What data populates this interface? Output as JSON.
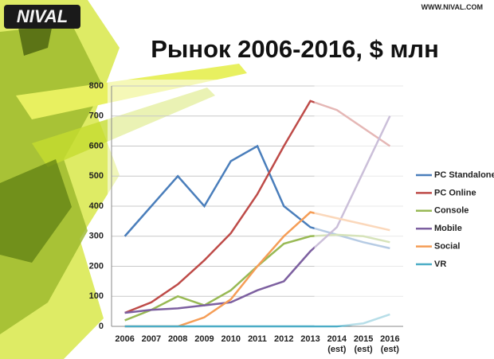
{
  "header": {
    "logo": "NIVAL",
    "site": "WWW.NIVAL.COM"
  },
  "chart_data": {
    "type": "line",
    "title": "Рынок 2006-2016, $ млн",
    "categories": [
      "2006",
      "2007",
      "2008",
      "2009",
      "2010",
      "2011",
      "2012",
      "2013",
      "2014\n(est)",
      "2015\n(est)",
      "2016\n(est)"
    ],
    "ylim": [
      0,
      800
    ],
    "yticks": [
      0,
      100,
      200,
      300,
      400,
      500,
      600,
      700,
      800
    ],
    "grid": true,
    "legend": "right",
    "series": [
      {
        "name": "PC Standalone",
        "color": "#4a7ebb",
        "values": [
          300,
          400,
          500,
          400,
          550,
          600,
          400,
          330,
          305,
          280,
          260
        ]
      },
      {
        "name": "PC Online",
        "color": "#be4b48",
        "values": [
          45,
          80,
          140,
          220,
          310,
          440,
          600,
          750,
          720,
          660,
          600
        ]
      },
      {
        "name": "Console",
        "color": "#98b954",
        "values": [
          20,
          55,
          100,
          70,
          120,
          200,
          275,
          300,
          305,
          300,
          280
        ]
      },
      {
        "name": "Mobile",
        "color": "#7d60a0",
        "values": [
          45,
          55,
          60,
          70,
          80,
          120,
          150,
          250,
          330,
          515,
          700
        ]
      },
      {
        "name": "Social",
        "color": "#f59d56",
        "values": [
          0,
          0,
          0,
          30,
          90,
          200,
          300,
          380,
          360,
          340,
          320
        ]
      },
      {
        "name": "VR",
        "color": "#4bacc6",
        "values": [
          0,
          0,
          0,
          0,
          0,
          0,
          0,
          0,
          0,
          10,
          40
        ]
      }
    ]
  }
}
